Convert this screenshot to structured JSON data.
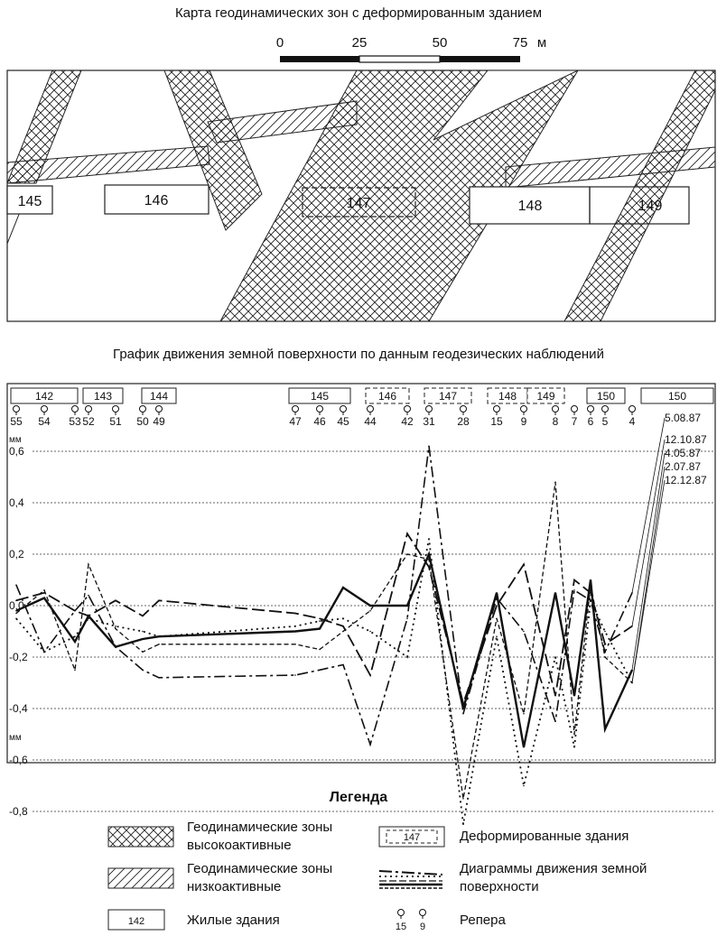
{
  "map": {
    "title": "Карта геодинамических зон с деформированным зданием",
    "scale": {
      "ticks": [
        "0",
        "25",
        "50",
        "75"
      ],
      "unit": "м"
    },
    "buildings": [
      {
        "label": "145",
        "deformed": false
      },
      {
        "label": "146",
        "deformed": false
      },
      {
        "label": "147",
        "deformed": true
      },
      {
        "label": "148",
        "deformed": false
      },
      {
        "label": "149",
        "deformed": false
      }
    ]
  },
  "chart_title": "График движения земной поверхности по данным геодезических наблюдений",
  "strip": {
    "buildings": [
      {
        "label": "142",
        "deformed": false
      },
      {
        "label": "143",
        "deformed": false
      },
      {
        "label": "144",
        "deformed": false
      },
      {
        "label": "145",
        "deformed": false
      },
      {
        "label": "146",
        "deformed": true
      },
      {
        "label": "147",
        "deformed": true
      },
      {
        "label": "148",
        "deformed": true
      },
      {
        "label": "149",
        "deformed": true
      },
      {
        "label": "150",
        "deformed": false
      },
      {
        "label": "150",
        "deformed": false
      }
    ],
    "benchmarks": [
      "55",
      "54",
      "53",
      "52",
      "51",
      "50",
      "49",
      "47",
      "46",
      "45",
      "44",
      "42",
      "31",
      "28",
      "15",
      "9",
      "8",
      "7",
      "6",
      "5",
      "4"
    ]
  },
  "chart_data": {
    "type": "line",
    "title": "График движения земной поверхности по данным геодезических наблюдений",
    "ylabel": "мм",
    "ylim": [
      -0.9,
      0.7
    ],
    "yticks": [
      "0,6",
      "0,4",
      "0,2",
      "0,0",
      "-0,2",
      "-0,4",
      "-0,6",
      "-0,8"
    ],
    "grid": true,
    "x_benchmarks": [
      "55",
      "54",
      "53",
      "52",
      "51",
      "50",
      "49",
      "47",
      "46",
      "45",
      "44",
      "42",
      "31",
      "28",
      "15",
      "9",
      "8",
      "7",
      "6",
      "5",
      "4"
    ],
    "series": [
      {
        "name": "5.08.87",
        "style": "dash-dot",
        "values": [
          0.08,
          -0.18,
          -0.02,
          0.04,
          -0.16,
          -0.25,
          -0.28,
          -0.27,
          -0.25,
          -0.23,
          -0.54,
          -0.05,
          0.62,
          -0.42,
          0.03,
          -0.1,
          -0.45,
          0.06,
          0.02,
          -0.18,
          0.05
        ]
      },
      {
        "name": "12.10.87",
        "style": "long-dash",
        "values": [
          0.02,
          0.05,
          -0.02,
          -0.04,
          0.02,
          -0.04,
          0.02,
          -0.03,
          -0.05,
          -0.08,
          -0.27,
          0.28,
          0.15,
          -0.38,
          0.0,
          0.16,
          -0.35,
          0.1,
          0.05,
          -0.15,
          -0.08
        ]
      },
      {
        "name": "4.05.87",
        "style": "solid",
        "values": [
          -0.02,
          0.03,
          -0.14,
          -0.04,
          -0.16,
          -0.13,
          -0.12,
          -0.1,
          -0.09,
          0.07,
          -0.0,
          0.0,
          0.2,
          -0.4,
          0.05,
          -0.55,
          0.05,
          -0.35,
          0.1,
          -0.48,
          -0.25
        ]
      },
      {
        "name": "2.07.87",
        "style": "dotted",
        "values": [
          -0.05,
          -0.18,
          -0.12,
          -0.05,
          -0.08,
          -0.1,
          -0.12,
          -0.08,
          -0.06,
          -0.05,
          -0.1,
          -0.2,
          0.26,
          -0.85,
          -0.12,
          -0.7,
          -0.2,
          -0.55,
          0.02,
          -0.1,
          -0.3
        ]
      },
      {
        "name": "12.12.87",
        "style": "fine-dash",
        "values": [
          -0.03,
          0.06,
          -0.25,
          0.16,
          -0.09,
          -0.18,
          -0.15,
          -0.15,
          -0.17,
          -0.1,
          -0.02,
          0.2,
          0.18,
          -0.75,
          -0.05,
          -0.42,
          0.48,
          -0.5,
          0.08,
          -0.2,
          -0.3
        ]
      }
    ]
  },
  "legend": {
    "title": "Легенда",
    "items": [
      {
        "text": "Геодинамические зоны высокоактивные"
      },
      {
        "text": "Деформированные здания",
        "sample": "147"
      },
      {
        "text": "Геодинамические зоны низкоактивные"
      },
      {
        "text": "Диаграммы движения земной поверхности"
      },
      {
        "text": "Жилые здания",
        "sample": "142"
      },
      {
        "text": "Репера",
        "sample": [
          "15",
          "9"
        ]
      }
    ]
  }
}
